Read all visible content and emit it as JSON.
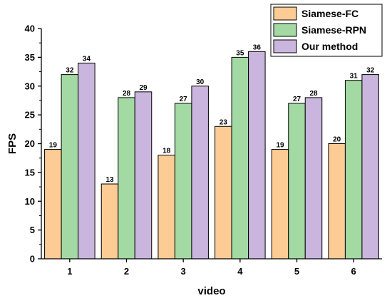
{
  "chart_data": {
    "type": "bar",
    "title": "",
    "xlabel": "video",
    "ylabel": "FPS",
    "categories": [
      "1",
      "2",
      "3",
      "4",
      "5",
      "6"
    ],
    "ylim": [
      0,
      40
    ],
    "yticks": [
      0,
      5,
      10,
      15,
      20,
      25,
      30,
      35,
      40
    ],
    "grid": false,
    "legend_position": "top-right",
    "series": [
      {
        "name": "Siamese-FC",
        "color": "#FDCB94",
        "values": [
          19,
          13,
          18,
          23,
          19,
          20
        ]
      },
      {
        "name": "Siamese-RPN",
        "color": "#A3D9A3",
        "values": [
          32,
          28,
          27,
          35,
          27,
          31
        ]
      },
      {
        "name": "Our method",
        "color": "#C9B5DD",
        "values": [
          34,
          29,
          30,
          36,
          28,
          32
        ]
      }
    ]
  }
}
